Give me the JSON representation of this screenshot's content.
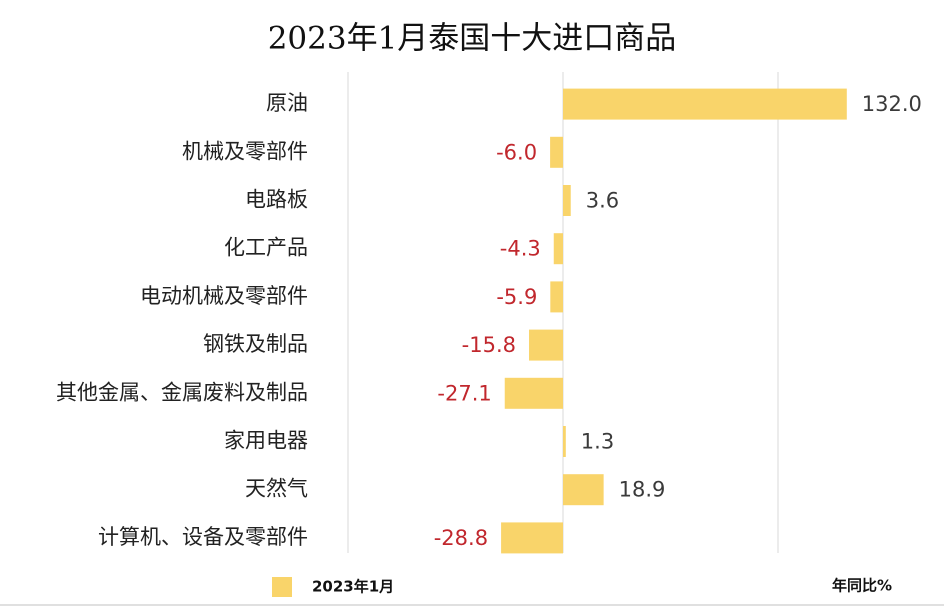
{
  "chart_data": {
    "type": "hbar",
    "title": "2023年1月泰国十大进口商品",
    "categories": [
      "原油",
      "机械及零部件",
      "电路板",
      "化工产品",
      "电动机械及零部件",
      "钢铁及制品",
      "其他金属、金属废料及制品",
      "家用电器",
      "天然气",
      "计算机、设备及零部件"
    ],
    "series": [
      {
        "name": "2023年1月",
        "color": "#f9d46a",
        "values": [
          132.0,
          -6.0,
          3.6,
          -4.3,
          -5.9,
          -15.8,
          -27.1,
          1.3,
          18.9,
          -28.8
        ],
        "value_labels": [
          "132.0",
          "-6.0",
          "3.6",
          "-4.3",
          "-5.9",
          "-15.8",
          "-27.1",
          "1.3",
          "18.9",
          "-28.8"
        ]
      }
    ],
    "xlabel": "年同比%",
    "xlim": [
      -100,
      140
    ],
    "xticks": [
      -100,
      0,
      100
    ],
    "grid": true,
    "label_color": "#3a3a3a",
    "negative_label_color": "#c1272d"
  }
}
